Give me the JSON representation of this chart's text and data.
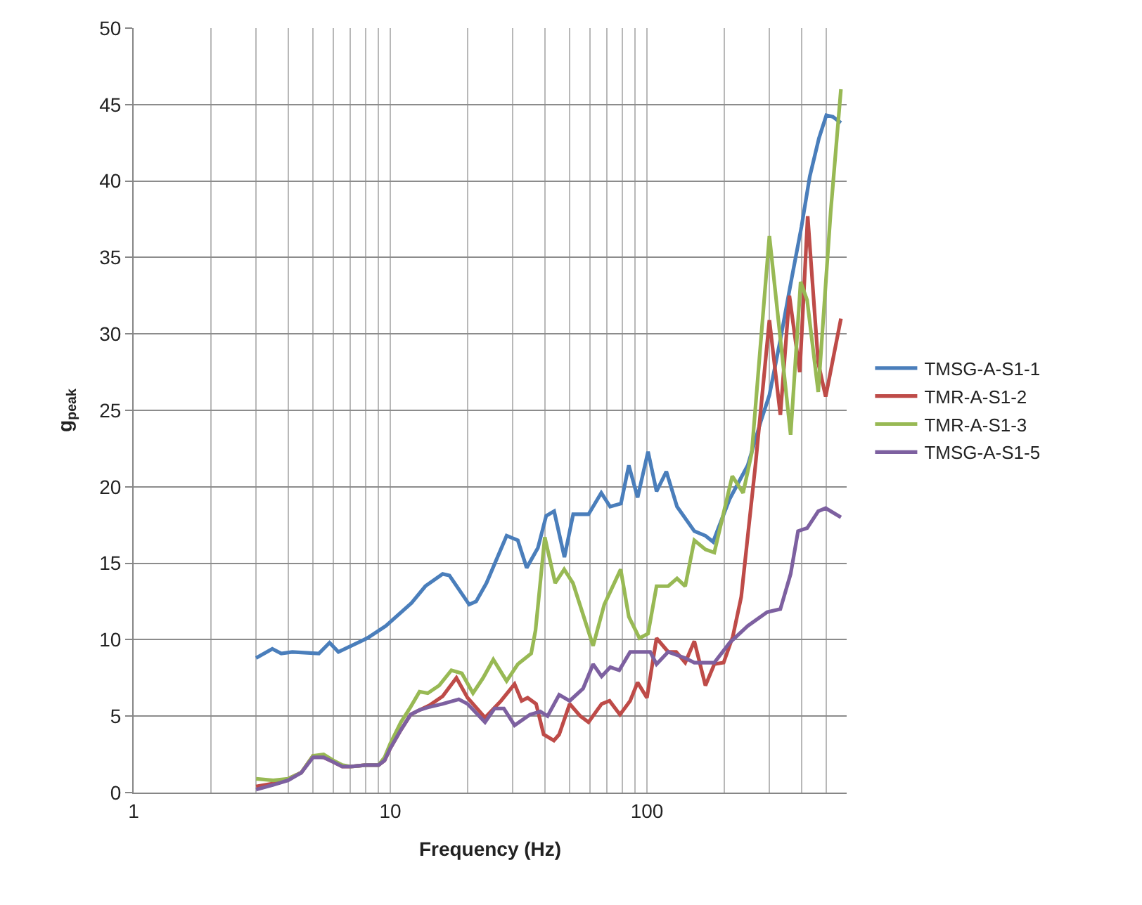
{
  "chart_data": {
    "type": "line",
    "xlabel": "Frequency (Hz)",
    "ylabel": "g$_{peak}$",
    "log": "x",
    "grid": true,
    "legend": "right",
    "marker": "none",
    "line_style": "solid",
    "xlim": [
      1,
      600
    ],
    "xticks": [
      1,
      {
        "value": 2,
        "label": null
      },
      {
        "value": 3,
        "label": null
      },
      {
        "value": 4,
        "label": null
      },
      {
        "value": 5,
        "label": null
      },
      {
        "value": 6,
        "label": null
      },
      {
        "value": 7,
        "label": null
      },
      {
        "value": 8,
        "label": null
      },
      {
        "value": 9,
        "label": null
      },
      10,
      {
        "value": 20,
        "label": null
      },
      {
        "value": 30,
        "label": null
      },
      {
        "value": 40,
        "label": null
      },
      {
        "value": 50,
        "label": null
      },
      {
        "value": 60,
        "label": null
      },
      {
        "value": 70,
        "label": null
      },
      {
        "value": 80,
        "label": null
      },
      {
        "value": 90,
        "label": null
      },
      100,
      {
        "value": 200,
        "label": null
      },
      {
        "value": 300,
        "label": null
      },
      {
        "value": 400,
        "label": null
      },
      {
        "value": 500,
        "label": null
      }
    ],
    "ylim": [
      0,
      50
    ],
    "yticks": [
      0,
      5,
      10,
      15,
      20,
      25,
      30,
      35,
      40,
      45,
      50
    ],
    "series": [
      {
        "name": "TMSG-A-S1-1",
        "color": "#4a7ebb",
        "x": [
          3,
          3.47,
          3.76,
          4.15,
          5.27,
          5.8,
          6.28,
          8.14,
          9.6,
          12.1,
          13.7,
          16,
          17,
          20.3,
          21.6,
          23.7,
          28.4,
          31.4,
          34,
          37.6,
          40.5,
          43.5,
          47.7,
          51.6,
          59.2,
          66.4,
          71.9,
          79.2,
          85,
          92,
          101,
          109,
          119,
          131,
          153,
          169,
          181,
          210,
          247,
          278,
          300,
          330,
          367,
          400,
          431,
          468,
          500,
          530,
          570
        ],
        "values": [
          8.8,
          9.4,
          9.1,
          9.2,
          9.1,
          9.8,
          9.2,
          10.1,
          10.9,
          12.4,
          13.5,
          14.3,
          14.2,
          12.3,
          12.5,
          13.7,
          16.8,
          16.5,
          14.7,
          16.0,
          18.1,
          18.4,
          15.4,
          18.2,
          18.2,
          19.6,
          18.7,
          18.9,
          21.4,
          19.3,
          22.3,
          19.7,
          21.0,
          18.7,
          17.1,
          16.8,
          16.4,
          19.2,
          21.4,
          24.3,
          26,
          29.5,
          33.7,
          37,
          40.3,
          42.8,
          44.3,
          44.2,
          43.8
        ]
      },
      {
        "name": "TMR-A-S1-2",
        "color": "#be4b48",
        "x": [
          3,
          3.5,
          4,
          4.5,
          5,
          5.5,
          6,
          6.5,
          7,
          8,
          9,
          9.5,
          10,
          11,
          12,
          13,
          14.2,
          16,
          18.1,
          20,
          23.4,
          27,
          30.5,
          32.5,
          34.3,
          37,
          39.6,
          43.4,
          45.5,
          50,
          55,
          59.2,
          66.6,
          71.5,
          78.5,
          86,
          92,
          100,
          109,
          121,
          130,
          141,
          153,
          169,
          183,
          199,
          216,
          233,
          265,
          300,
          331,
          359,
          394,
          423,
          465,
          497,
          570
        ],
        "values": [
          0.4,
          0.6,
          0.9,
          1.3,
          2.4,
          2.3,
          2.0,
          1.7,
          1.7,
          1.8,
          1.8,
          2.1,
          2.9,
          4.1,
          5.1,
          5.4,
          5.7,
          6.3,
          7.5,
          6.2,
          4.9,
          6.0,
          7.1,
          6.0,
          6.2,
          5.8,
          3.8,
          3.4,
          3.8,
          5.8,
          5.0,
          4.6,
          5.8,
          6.0,
          5.1,
          6.0,
          7.2,
          6.2,
          10.1,
          9.2,
          9.2,
          8.5,
          9.9,
          7.0,
          8.4,
          8.5,
          10.2,
          12.8,
          21.5,
          30.9,
          24.7,
          32.5,
          27.5,
          37.7,
          28.1,
          25.9,
          31
        ]
      },
      {
        "name": "TMR-A-S1-3",
        "color": "#98b954",
        "x": [
          3,
          3.5,
          4,
          4.5,
          5,
          5.5,
          6,
          6.5,
          7,
          8,
          9,
          9.5,
          10,
          11,
          12,
          13,
          14,
          15.5,
          17.3,
          19,
          21,
          23,
          25.2,
          28.4,
          31.4,
          35.4,
          36.8,
          40,
          43.9,
          47.6,
          51.5,
          61.7,
          68.2,
          79,
          85,
          93.5,
          101,
          109,
          121,
          131,
          141,
          153,
          169,
          183,
          215,
          237,
          256,
          300,
          363,
          397,
          421,
          465,
          520,
          570
        ],
        "values": [
          0.9,
          0.8,
          0.9,
          1.3,
          2.4,
          2.5,
          2.1,
          1.8,
          1.7,
          1.8,
          1.8,
          2.3,
          3.2,
          4.6,
          5.6,
          6.6,
          6.5,
          7.0,
          8.0,
          7.8,
          6.5,
          7.5,
          8.7,
          7.3,
          8.4,
          9.1,
          10.6,
          16.7,
          13.7,
          14.6,
          13.7,
          9.6,
          12.3,
          14.6,
          11.5,
          10.1,
          10.4,
          13.5,
          13.5,
          14.0,
          13.5,
          16.5,
          15.9,
          15.7,
          20.7,
          19.6,
          22.2,
          36.4,
          23.4,
          33.4,
          32.2,
          26.2,
          38,
          46
        ]
      },
      {
        "name": "TMSG-A-S1-5",
        "color": "#7d60a0",
        "x": [
          3,
          3.5,
          4,
          4.5,
          5,
          5.5,
          6,
          6.5,
          7,
          8,
          9,
          9.5,
          10,
          11,
          12,
          13,
          14.2,
          16,
          18.5,
          20,
          23.4,
          25.5,
          27.7,
          30.5,
          35,
          38.4,
          41,
          45.5,
          50,
          56.4,
          61.7,
          66.6,
          72,
          78,
          86,
          103,
          109,
          121,
          141,
          153,
          183,
          210,
          247,
          294,
          331,
          363,
          388,
          421,
          465,
          497,
          570
        ],
        "values": [
          0.2,
          0.5,
          0.8,
          1.3,
          2.3,
          2.3,
          2.0,
          1.7,
          1.7,
          1.8,
          1.8,
          2.1,
          2.9,
          4.1,
          5.1,
          5.4,
          5.6,
          5.8,
          6.1,
          5.8,
          4.6,
          5.5,
          5.5,
          4.4,
          5.1,
          5.3,
          5.0,
          6.4,
          6.0,
          6.8,
          8.4,
          7.6,
          8.2,
          8.0,
          9.2,
          9.2,
          8.4,
          9.2,
          8.8,
          8.5,
          8.5,
          9.8,
          10.9,
          11.8,
          12.0,
          14.3,
          17.1,
          17.3,
          18.4,
          18.6,
          18.0
        ]
      }
    ]
  }
}
